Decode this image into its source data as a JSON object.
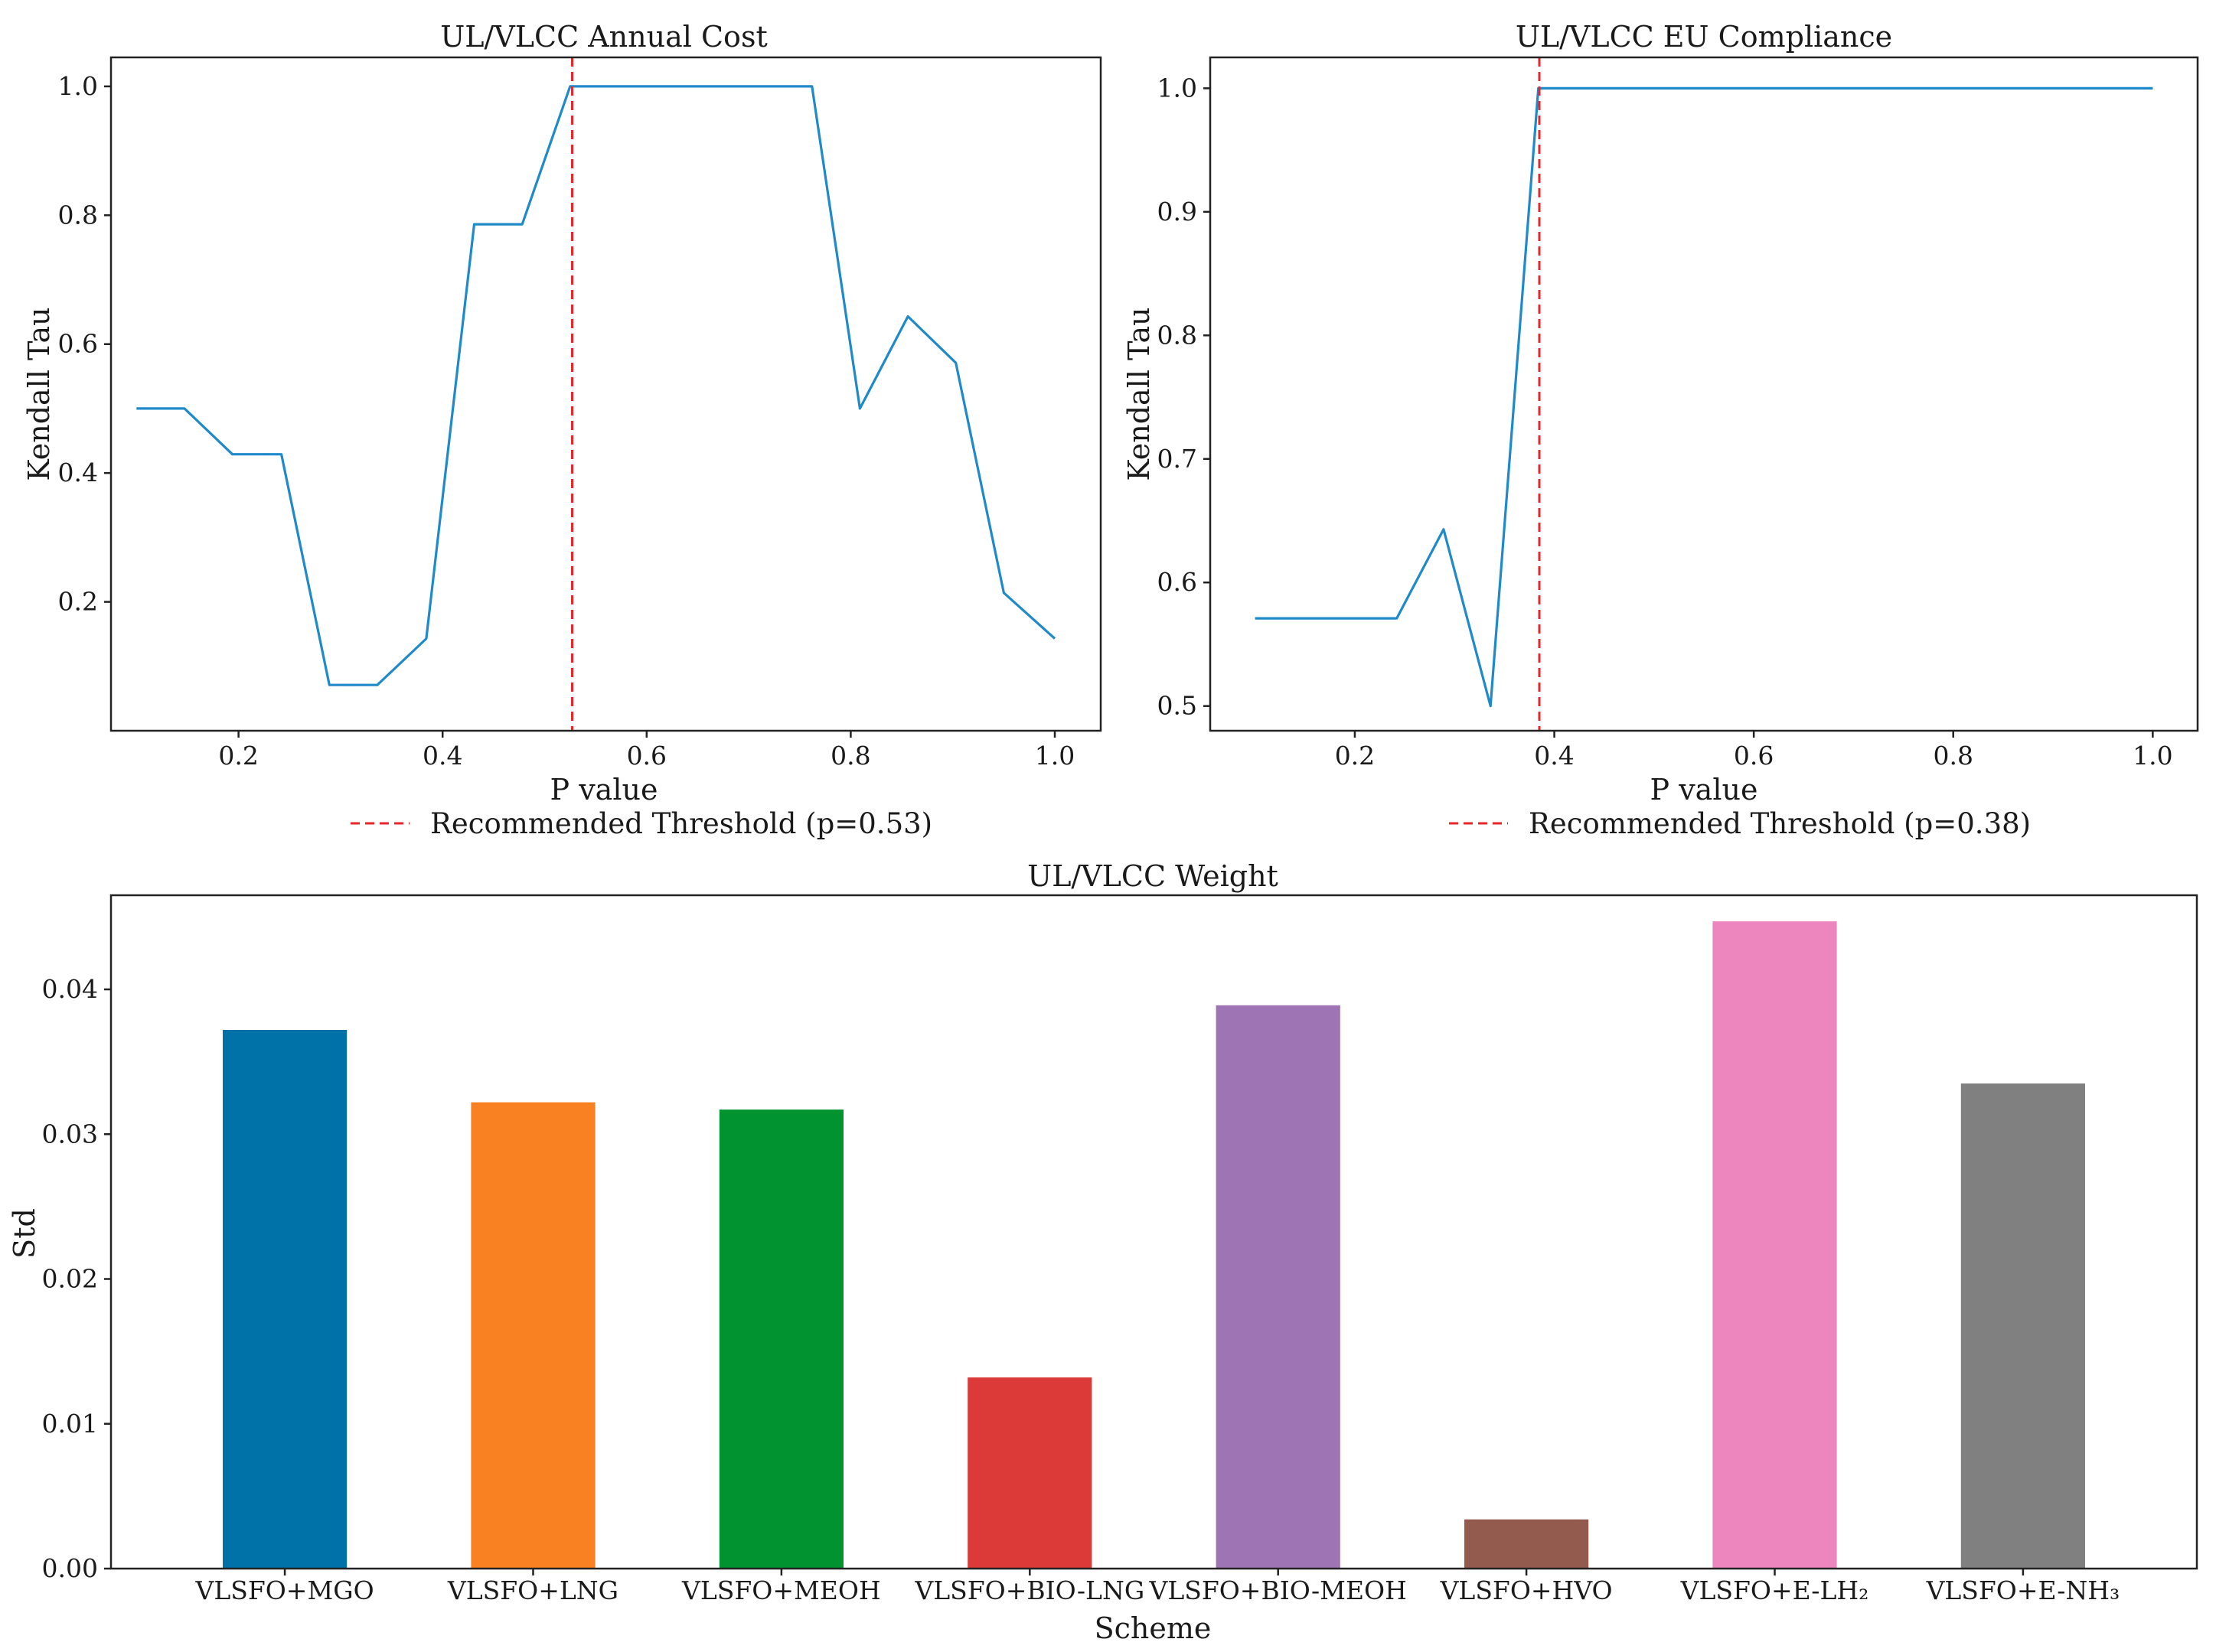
{
  "chart_data": [
    {
      "type": "line",
      "title": "UL/VLCC Annual Cost",
      "xlabel": "P value",
      "ylabel": "Kendall Tau",
      "xlim": [
        0.075,
        1.045
      ],
      "ylim": [
        0.0,
        1.045
      ],
      "xticks": [
        0.2,
        0.4,
        0.6,
        0.8,
        1.0
      ],
      "xtick_labels": [
        "0.2",
        "0.4",
        "0.6",
        "0.8",
        "1.0"
      ],
      "yticks": [
        0.2,
        0.4,
        0.6,
        0.8,
        1.0
      ],
      "ytick_labels": [
        "0.2",
        "0.4",
        "0.6",
        "0.8",
        "1.0"
      ],
      "series": [
        {
          "name": "Kendall Tau",
          "color": "#1f8ac9",
          "x": [
            0.1,
            0.147,
            0.194,
            0.242,
            0.289,
            0.336,
            0.384,
            0.431,
            0.478,
            0.525,
            0.572,
            0.62,
            0.667,
            0.714,
            0.762,
            0.809,
            0.856,
            0.903,
            0.95,
            1.0
          ],
          "y": [
            0.5,
            0.5,
            0.429,
            0.429,
            0.071,
            0.071,
            0.143,
            0.786,
            0.786,
            1.0,
            1.0,
            1.0,
            1.0,
            1.0,
            1.0,
            0.5,
            0.643,
            0.571,
            0.214,
            0.143
          ]
        }
      ],
      "threshold": {
        "x": 0.527,
        "color": "#e8262a",
        "label": "Recommended Threshold (p=0.53)"
      },
      "legend_position": "bottom-center"
    },
    {
      "type": "line",
      "title": "UL/VLCC EU Compliance",
      "xlabel": "P value",
      "ylabel": "Kendall Tau",
      "xlim": [
        0.055,
        1.045
      ],
      "ylim": [
        0.48,
        1.025
      ],
      "xticks": [
        0.2,
        0.4,
        0.6,
        0.8,
        1.0
      ],
      "xtick_labels": [
        "0.2",
        "0.4",
        "0.6",
        "0.8",
        "1.0"
      ],
      "yticks": [
        0.5,
        0.6,
        0.7,
        0.8,
        0.9,
        1.0
      ],
      "ytick_labels": [
        "0.5",
        "0.6",
        "0.7",
        "0.8",
        "0.9",
        "1.0"
      ],
      "series": [
        {
          "name": "Kendall Tau",
          "color": "#1f8ac9",
          "x": [
            0.1,
            0.147,
            0.194,
            0.242,
            0.289,
            0.336,
            0.384,
            1.0
          ],
          "y": [
            0.571,
            0.571,
            0.571,
            0.571,
            0.643,
            0.5,
            1.0,
            1.0
          ]
        }
      ],
      "threshold": {
        "x": 0.385,
        "color": "#e8262a",
        "label": "Recommended Threshold (p=0.38)"
      },
      "legend_position": "bottom-center"
    },
    {
      "type": "bar",
      "title": "UL/VLCC Weight",
      "xlabel": "Scheme",
      "ylabel": "Std",
      "ylim": [
        0.0,
        0.0465
      ],
      "yticks": [
        0.0,
        0.01,
        0.02,
        0.03,
        0.04
      ],
      "ytick_labels": [
        "0.00",
        "0.01",
        "0.02",
        "0.03",
        "0.04"
      ],
      "categories": [
        "VLSFO+MGO",
        "VLSFO+LNG",
        "VLSFO+MEOH",
        "VLSFO+BIO-LNG",
        "VLSFO+BIO-MEOH",
        "VLSFO+HVO",
        "VLSFO+E-LH₂",
        "VLSFO+E-NH₃"
      ],
      "values": [
        0.0372,
        0.0322,
        0.0317,
        0.0132,
        0.0389,
        0.0034,
        0.0447,
        0.0335
      ],
      "colors": [
        "#0072a8",
        "#fa8121",
        "#009330",
        "#dc3a38",
        "#9e74b4",
        "#935a4e",
        "#ed86bf",
        "#808080"
      ]
    }
  ]
}
